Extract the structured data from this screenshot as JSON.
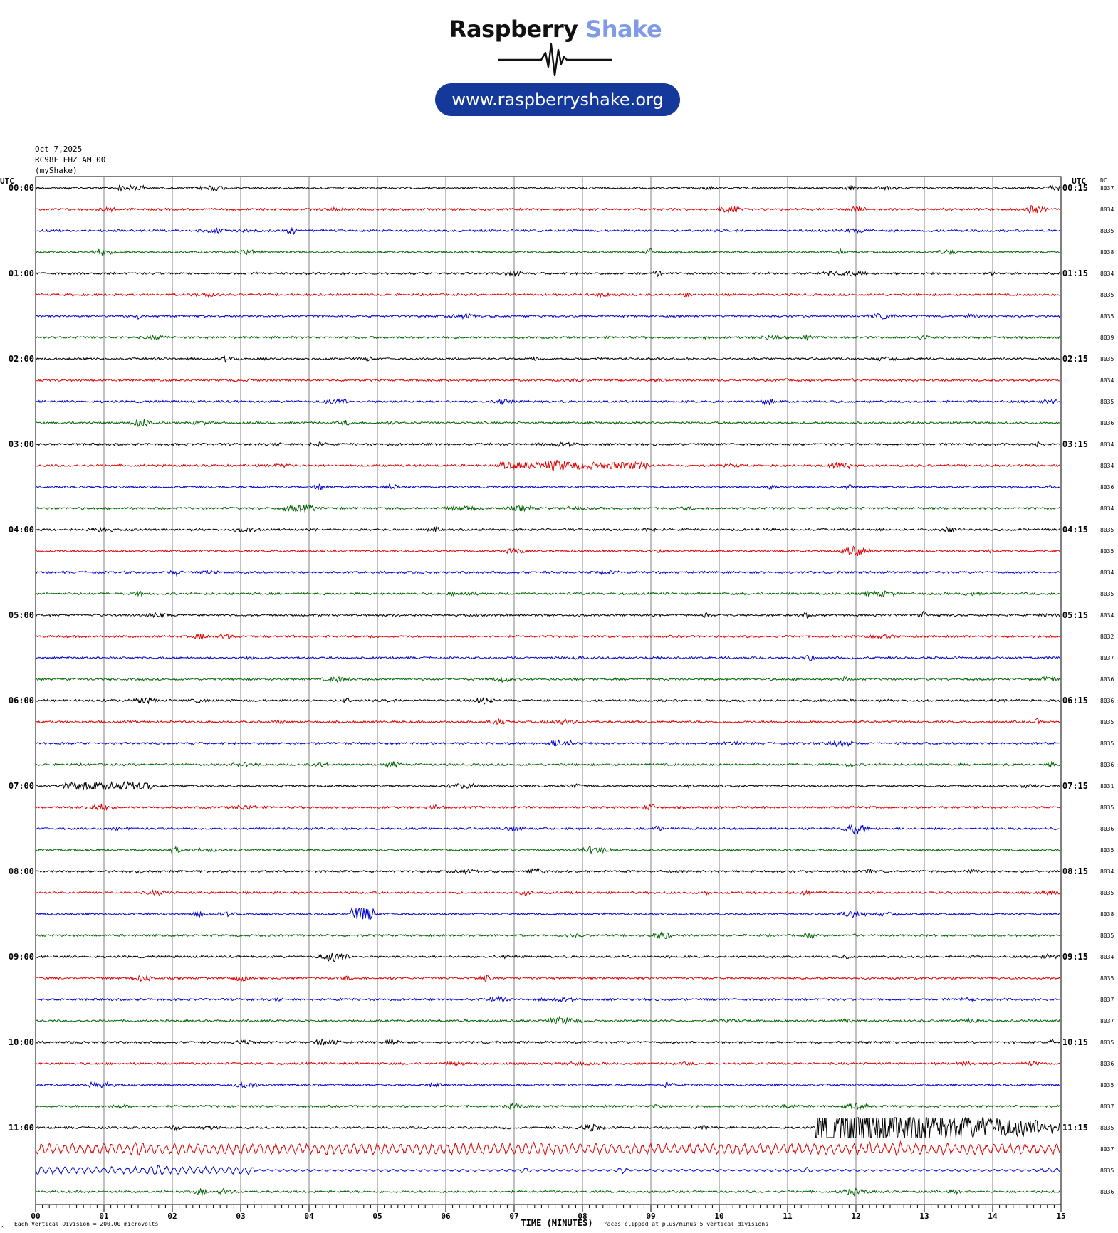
{
  "logo": {
    "brand_part1": "Raspberry",
    "brand_part2": "Shake",
    "url": "www.raspberryshake.org",
    "colors": {
      "part1": "#111111",
      "part2": "#7f9be8",
      "pill": "#15389b"
    }
  },
  "header": {
    "date": "Oct 7,2025",
    "station": "RC98F EHZ AM 00",
    "network": "(myShake)"
  },
  "chart_data": {
    "type": "line",
    "title": "",
    "left_axis_label": "UTC",
    "right_axis_label": "UTC",
    "dc_label": "DC",
    "xlabel": "TIME (MINUTES)",
    "x_ticks": [
      "00",
      "01",
      "02",
      "03",
      "04",
      "05",
      "06",
      "07",
      "08",
      "09",
      "10",
      "11",
      "12",
      "13",
      "14",
      "15"
    ],
    "xlim": [
      0,
      15
    ],
    "scale_note": "Each Vertical Division =  200.00 microvolts",
    "clip_note": "Traces clipped at plus/minus 5 vertical divisions",
    "corner_mark": "^",
    "line_colors": [
      "#000000",
      "#e00000",
      "#0000d0",
      "#006400"
    ],
    "rows_per_hour": 4,
    "hours": [
      {
        "left": "00:00",
        "right": "00:15",
        "dc": [
          "8037",
          "8034",
          "8035",
          "8038"
        ]
      },
      {
        "left": "01:00",
        "right": "01:15",
        "dc": [
          "8034",
          "8035",
          "8035",
          "8039"
        ]
      },
      {
        "left": "02:00",
        "right": "02:15",
        "dc": [
          "8035",
          "8034",
          "8035",
          "8036"
        ]
      },
      {
        "left": "03:00",
        "right": "03:15",
        "dc": [
          "8034",
          "8034",
          "8036",
          "8034"
        ]
      },
      {
        "left": "04:00",
        "right": "04:15",
        "dc": [
          "8035",
          "8035",
          "8034",
          "8035"
        ]
      },
      {
        "left": "05:00",
        "right": "05:15",
        "dc": [
          "8034",
          "8032",
          "8037",
          "8036"
        ]
      },
      {
        "left": "06:00",
        "right": "06:15",
        "dc": [
          "8036",
          "8035",
          "8035",
          "8036"
        ]
      },
      {
        "left": "07:00",
        "right": "07:15",
        "dc": [
          "8031",
          "8035",
          "8036",
          "8035"
        ]
      },
      {
        "left": "08:00",
        "right": "08:15",
        "dc": [
          "8034",
          "8035",
          "8038",
          "8035"
        ]
      },
      {
        "left": "09:00",
        "right": "09:15",
        "dc": [
          "8034",
          "8035",
          "8037",
          "8037"
        ]
      },
      {
        "left": "10:00",
        "right": "10:15",
        "dc": [
          "8035",
          "8036",
          "8035",
          "8037"
        ]
      },
      {
        "left": "11:00",
        "right": "11:15",
        "dc": [
          "8035",
          "8037",
          "8035",
          "8036"
        ]
      }
    ],
    "events": [
      {
        "row": 44,
        "start": 11.4,
        "end": 15.0,
        "amplitude": 3.2
      },
      {
        "row": 45,
        "start": 0.0,
        "end": 15.0,
        "amplitude": 1.0
      },
      {
        "row": 46,
        "start": 0.0,
        "end": 3.2,
        "amplitude": 0.6
      },
      {
        "row": 34,
        "start": 4.6,
        "end": 4.95,
        "amplitude": 1.2
      },
      {
        "row": 28,
        "start": 0.4,
        "end": 1.7,
        "amplitude": 0.7
      },
      {
        "row": 13,
        "start": 6.8,
        "end": 9.0,
        "amplitude": 0.6
      },
      {
        "row": 0,
        "start": 1.2,
        "end": 1.6,
        "amplitude": 0.4
      },
      {
        "row": 1,
        "start": 10.0,
        "end": 10.3,
        "amplitude": 0.5
      },
      {
        "row": 15,
        "start": 3.6,
        "end": 4.1,
        "amplitude": 0.5
      }
    ]
  }
}
